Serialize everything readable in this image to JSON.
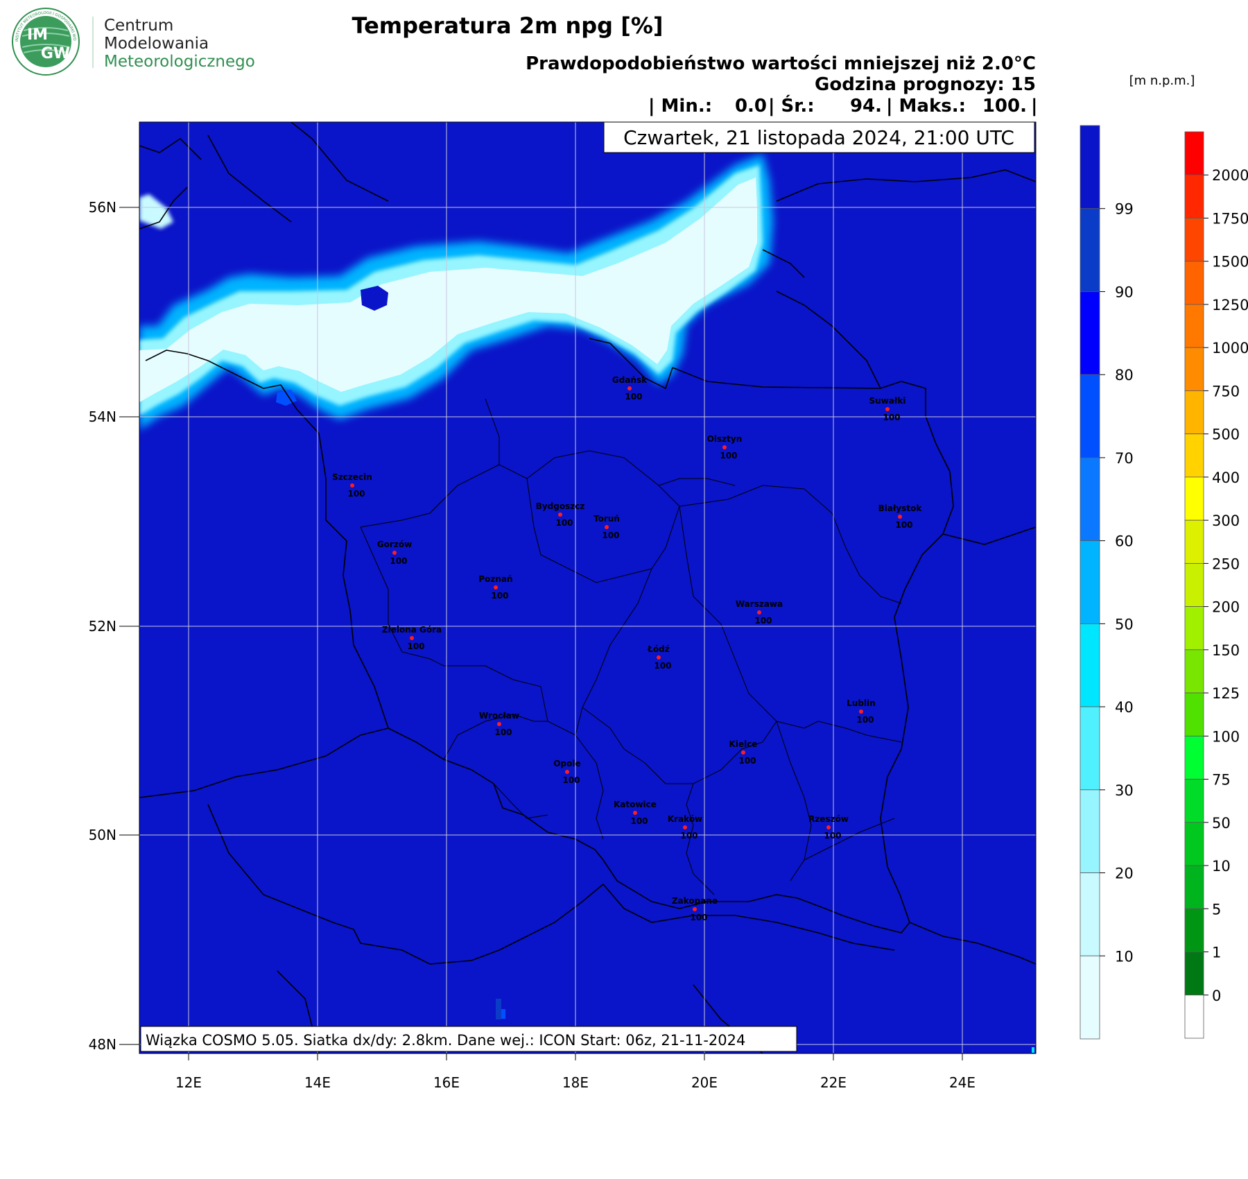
{
  "logo": {
    "badge_text_top": "IM",
    "badge_text_bottom": "GW",
    "ring_text": "INSTYTUT METEOROLOGII I GOSPODARKI WODNEJ",
    "org_line1": "Centrum",
    "org_line2": "Modelowania",
    "org_line3": "Meteorologicznego",
    "green": "#2f8f4f"
  },
  "header": {
    "title": "Temperatura 2m npg [%]",
    "subtitle": "Prawdopodobieństwo wartości mniejszej niż 2.0°C",
    "forecast_hour": "Godzina prognozy: 15",
    "stats": {
      "min_label": "| Min.:",
      "min_value": "0.0",
      "mean_label": "| Śr.:",
      "mean_value": "94.",
      "max_label": "| Maks.:",
      "max_value": "100.",
      "end": "|"
    },
    "valid_date": "Czwartek, 21 listopada 2024, 21:00 UTC"
  },
  "map": {
    "background_color": "#0a14c8",
    "grid_color": "#c8c8dc",
    "lat_labels": [
      "56N",
      "54N",
      "52N",
      "50N",
      "48N"
    ],
    "lon_labels": [
      "12E",
      "14E",
      "16E",
      "18E",
      "20E",
      "22E",
      "24E"
    ],
    "footer_note": "Wiązka COSMO 5.05. Siatka dx/dy: 2.8km. Dane wej.: ICON Start: 06z, 21-11-2024",
    "cities": [
      {
        "name": "Gdańsk",
        "value": "100"
      },
      {
        "name": "Suwałki",
        "value": "100"
      },
      {
        "name": "Olsztyn",
        "value": "100"
      },
      {
        "name": "Szczecin",
        "value": "100"
      },
      {
        "name": "Bydgoszcz",
        "value": "100"
      },
      {
        "name": "Toruń",
        "value": "100"
      },
      {
        "name": "Białystok",
        "value": "100"
      },
      {
        "name": "Gorzów",
        "value": "100"
      },
      {
        "name": "Poznań",
        "value": "100"
      },
      {
        "name": "Warszawa",
        "value": "100"
      },
      {
        "name": "Zielona Góra",
        "value": "100"
      },
      {
        "name": "Łódź",
        "value": "100"
      },
      {
        "name": "Lublin",
        "value": "100"
      },
      {
        "name": "Wrocław",
        "value": "100"
      },
      {
        "name": "Kielce",
        "value": "100"
      },
      {
        "name": "Opole",
        "value": "100"
      },
      {
        "name": "Katowice",
        "value": "100"
      },
      {
        "name": "Kraków",
        "value": "100"
      },
      {
        "name": "Rzeszów",
        "value": "100"
      },
      {
        "name": "Zakopane",
        "value": "100"
      }
    ]
  },
  "probability_legend": {
    "labels": [
      "99",
      "90",
      "80",
      "70",
      "60",
      "50",
      "40",
      "30",
      "20",
      "10"
    ],
    "colors": [
      "#0a14c8",
      "#0a3cc8",
      "#0000ff",
      "#0050ff",
      "#0a78ff",
      "#00b4ff",
      "#00e6ff",
      "#50f0ff",
      "#96f5ff",
      "#c8faff",
      "#e6fdff"
    ]
  },
  "elevation_legend": {
    "unit": "[m n.p.m.]",
    "labels": [
      "2000",
      "1750",
      "1500",
      "1250",
      "1000",
      "750",
      "500",
      "400",
      "300",
      "250",
      "200",
      "150",
      "125",
      "100",
      "75",
      "50",
      "10",
      "5",
      "1",
      "0"
    ],
    "colors": [
      "#ff0000",
      "#ff2800",
      "#ff4600",
      "#ff6400",
      "#ff7800",
      "#ff8c00",
      "#ffb400",
      "#ffd200",
      "#ffff00",
      "#dcf000",
      "#c8f000",
      "#a0f000",
      "#78e600",
      "#50e100",
      "#00ff32",
      "#00dc28",
      "#00c81e",
      "#00b41e",
      "#009614",
      "#007814",
      "#ffffff"
    ]
  }
}
